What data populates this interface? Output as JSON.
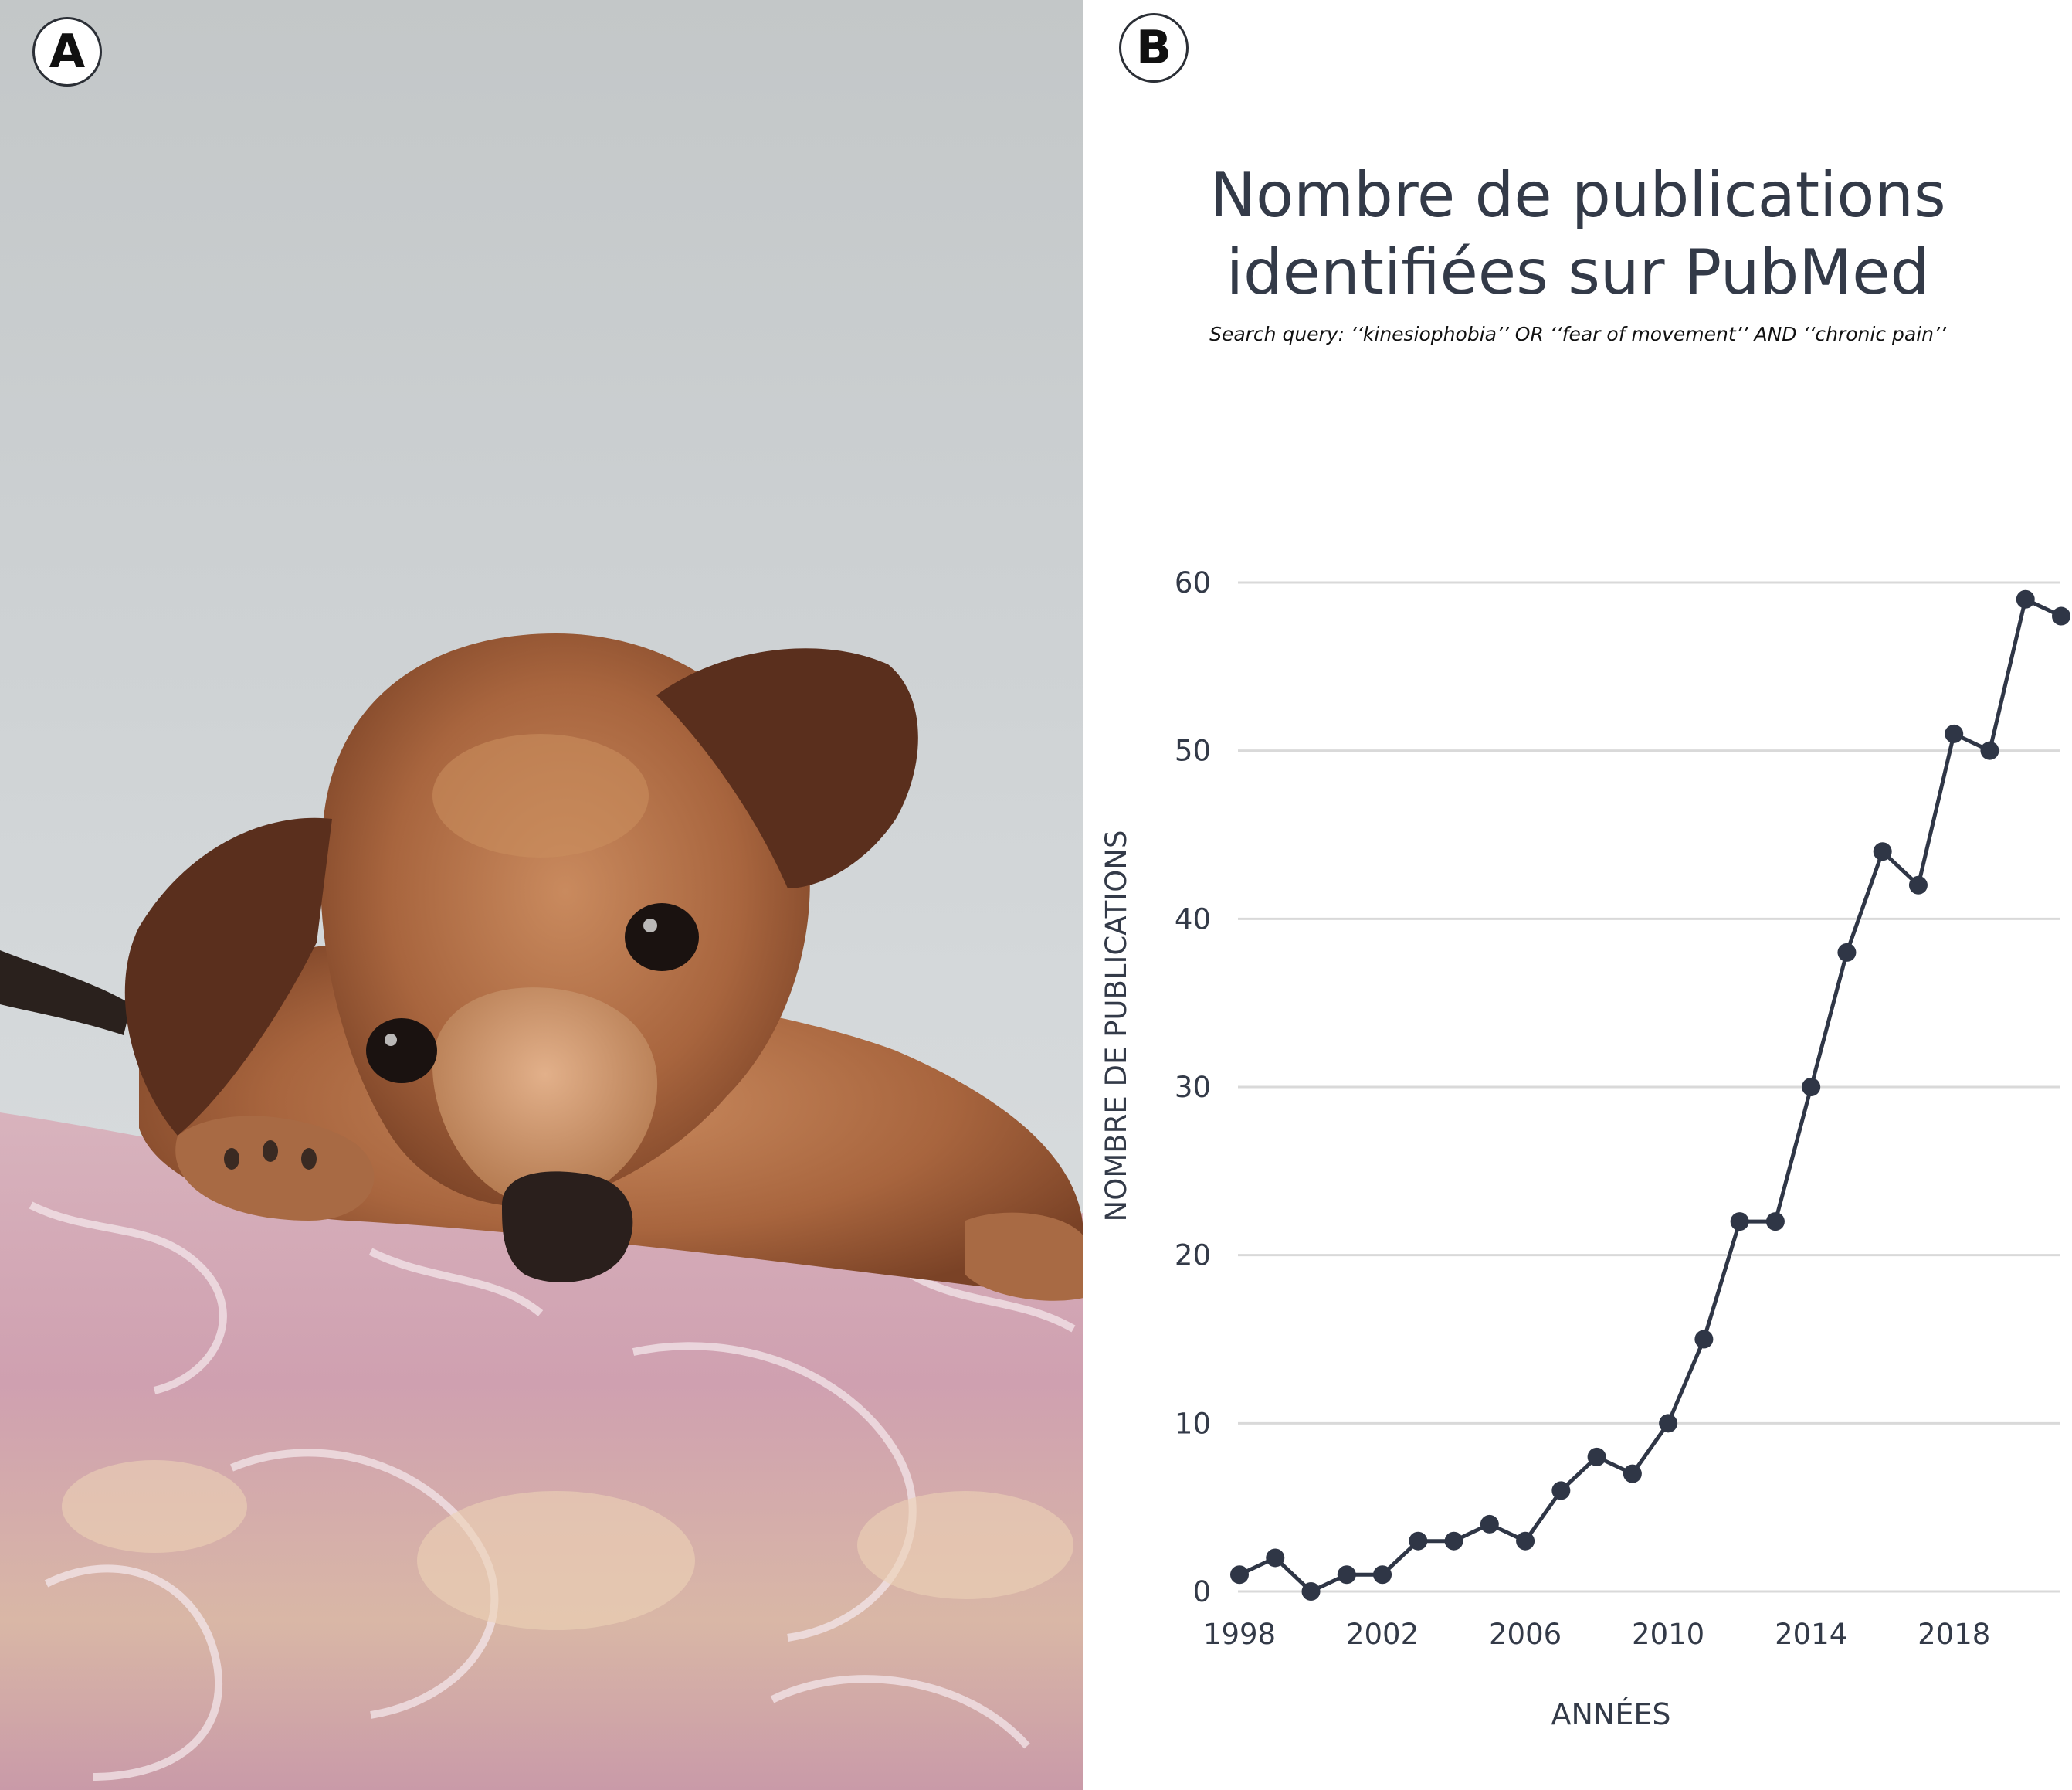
{
  "panels": {
    "a": {
      "label": "A"
    },
    "b": {
      "label": "B"
    }
  },
  "chart_data": {
    "type": "line",
    "title": [
      "Nombre de publications",
      "identifiées sur PubMed"
    ],
    "subtitle": "Search query: ‘‘kinesiophobia’’ OR ‘‘fear of movement’’ AND ‘‘chronic pain’’",
    "xlabel": "ANNÉES",
    "ylabel": "NOMBRE DE PUBLICATIONS",
    "xlim": [
      1998,
      2021
    ],
    "ylim": [
      0,
      60
    ],
    "x_ticks": [
      1998,
      2002,
      2006,
      2010,
      2014,
      2018
    ],
    "y_ticks": [
      0,
      10,
      20,
      30,
      40,
      50,
      60
    ],
    "grid": true,
    "line_color": "#2f3646",
    "x": [
      1998,
      1999,
      2000,
      2001,
      2002,
      2003,
      2004,
      2005,
      2006,
      2007,
      2008,
      2009,
      2010,
      2011,
      2012,
      2013,
      2014,
      2015,
      2016,
      2017,
      2018,
      2019,
      2020,
      2021
    ],
    "series": [
      {
        "values": [
          1,
          2,
          0,
          1,
          1,
          3,
          3,
          4,
          3,
          6,
          8,
          7,
          10,
          15,
          22,
          22,
          30,
          38,
          44,
          42,
          51,
          50,
          59,
          58
        ]
      }
    ]
  }
}
